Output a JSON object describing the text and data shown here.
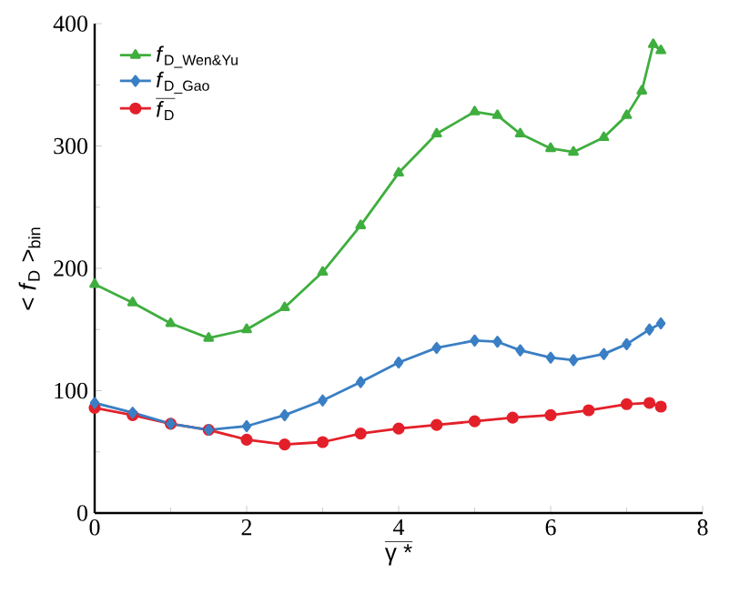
{
  "chart_data": {
    "type": "line",
    "xlabel": "γ *",
    "ylabel": "< *f*$_{D}$ >$_{bin}$",
    "xlim": [
      0,
      8
    ],
    "ylim": [
      0,
      400
    ],
    "xticks": [
      0,
      2,
      4,
      6,
      8
    ],
    "yticks": [
      0,
      100,
      200,
      300,
      400
    ],
    "grid": false,
    "legend": "top left",
    "series": [
      {
        "name": "*f*$_{D_Wen&Yu}$",
        "color": "#3fae3f",
        "marker": "triangle",
        "x": [
          0,
          0.5,
          1,
          1.5,
          2,
          2.5,
          3,
          3.5,
          4,
          4.5,
          5,
          5.3,
          5.6,
          6,
          6.3,
          6.7,
          7,
          7.2,
          7.35,
          7.45
        ],
        "values": [
          187,
          172,
          155,
          143,
          150,
          168,
          197,
          235,
          278,
          310,
          328,
          325,
          310,
          298,
          295,
          307,
          325,
          345,
          383,
          378
        ]
      },
      {
        "name": "*f*$_{D_Gao}$",
        "color": "#3a7fc4",
        "marker": "diamond",
        "x": [
          0,
          0.5,
          1,
          1.5,
          2,
          2.5,
          3,
          3.5,
          4,
          4.5,
          5,
          5.3,
          5.6,
          6,
          6.3,
          6.7,
          7,
          7.3,
          7.45
        ],
        "values": [
          90,
          82,
          73,
          68,
          71,
          80,
          92,
          107,
          123,
          135,
          141,
          140,
          133,
          127,
          125,
          130,
          138,
          150,
          155
        ]
      },
      {
        "name": "*f*$_{D}$",
        "color": "#e3202a",
        "marker": "circle",
        "x": [
          0,
          0.5,
          1,
          1.5,
          2,
          2.5,
          3,
          3.5,
          4,
          4.5,
          5,
          5.5,
          6,
          6.5,
          7,
          7.3,
          7.45
        ],
        "values": [
          86,
          80,
          73,
          68,
          60,
          56,
          58,
          65,
          69,
          72,
          75,
          78,
          80,
          84,
          89,
          90,
          87
        ]
      }
    ]
  }
}
